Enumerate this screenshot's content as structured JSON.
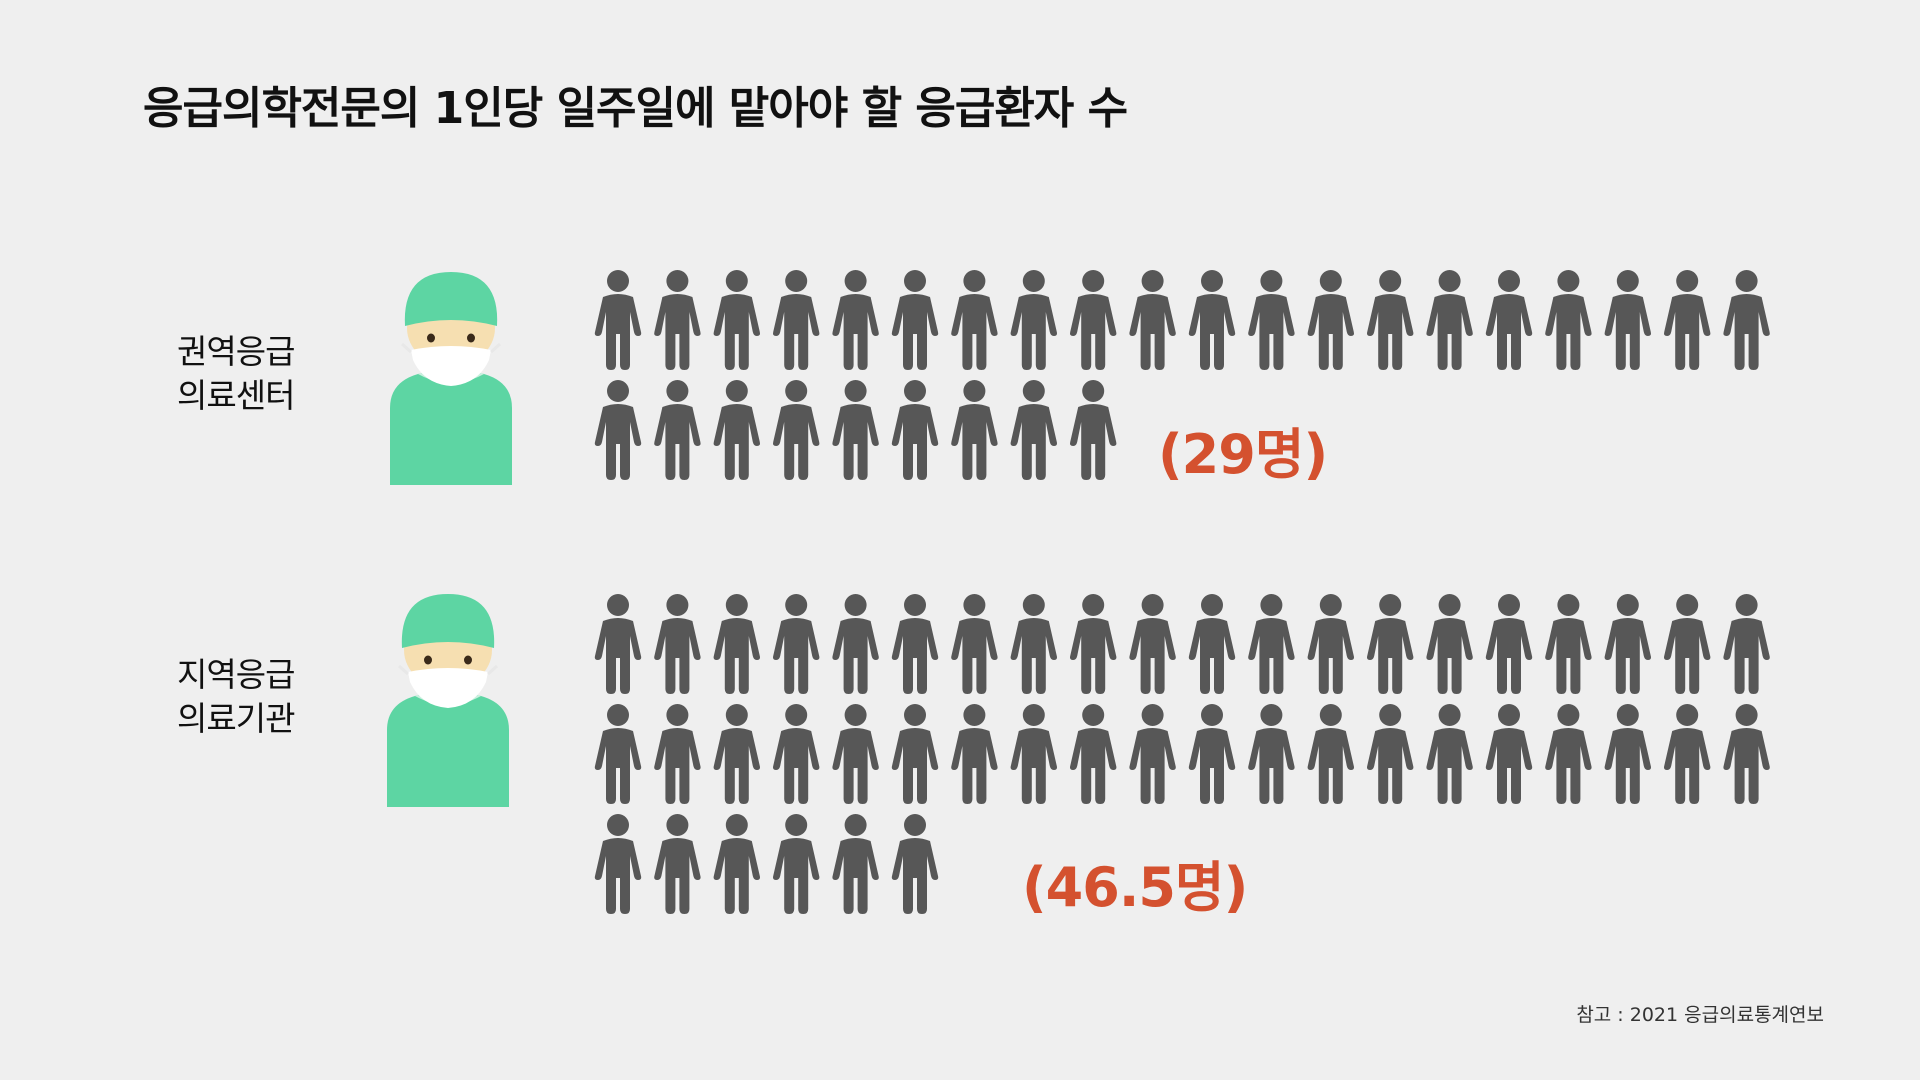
{
  "title": "응급의학전문의 1인당 일주일에 맡아야 할 응급환자 수",
  "source": "참고 : 2021 응급의료통계연보",
  "colors": {
    "background": "#efefef",
    "person_icon": "#575757",
    "accent": "#d4512f",
    "scrubs": "#5dd5a3",
    "skin": "#f6dfb1",
    "mask": "#ffffff"
  },
  "icons": {
    "person": "person-icon",
    "doctor": "doctor-icon"
  },
  "chart_data": {
    "type": "pictograph",
    "title": "응급의학전문의 1인당 일주일에 맡아야 할 응급환자 수",
    "unit": "명",
    "icons_per_row": 20,
    "categories": [
      "권역응급 의료센터",
      "지역응급 의료기관"
    ],
    "values": [
      29,
      46.5
    ],
    "groups": [
      {
        "label_lines": [
          "권역응급",
          "의료센터"
        ],
        "value": 29,
        "value_label": "(29명)"
      },
      {
        "label_lines": [
          "지역응급",
          "의료기관"
        ],
        "value": 46.5,
        "value_label": "(46.5명)"
      }
    ]
  }
}
